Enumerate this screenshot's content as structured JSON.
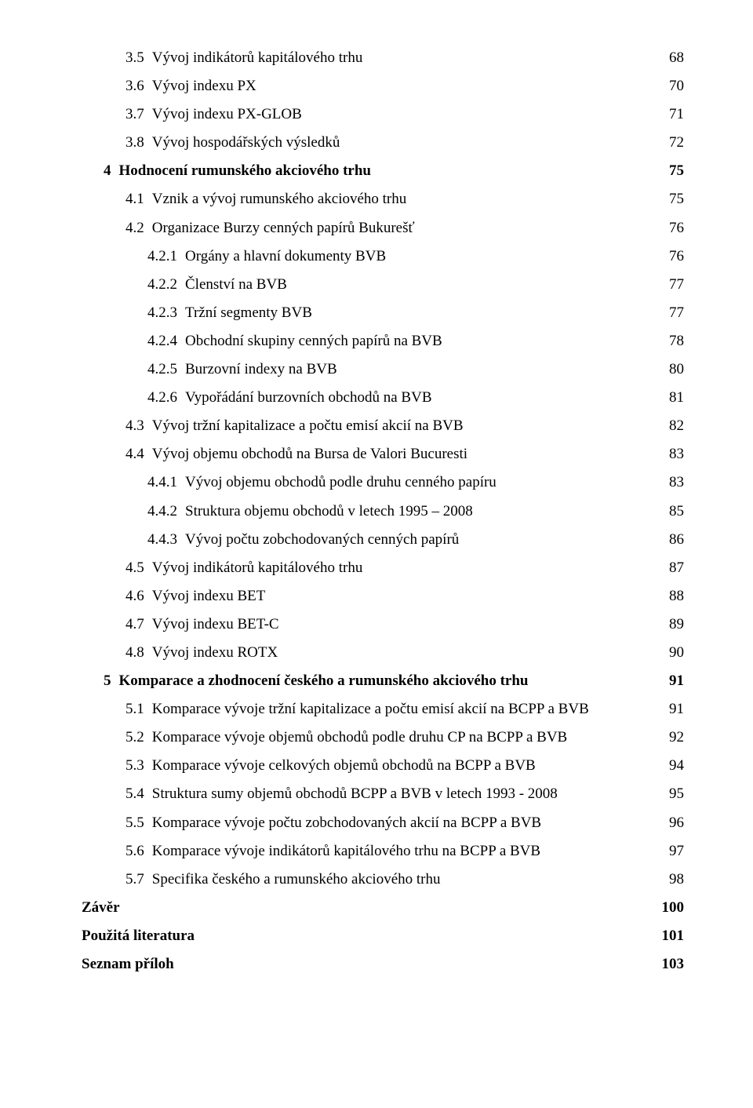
{
  "toc": [
    {
      "indent": 2,
      "num": "3.5",
      "title": "Vývoj indikátorů kapitálového trhu",
      "page": "68",
      "bold": false
    },
    {
      "indent": 2,
      "num": "3.6",
      "title": "Vývoj indexu PX",
      "page": "70",
      "bold": false
    },
    {
      "indent": 2,
      "num": "3.7",
      "title": "Vývoj indexu PX-GLOB",
      "page": "71",
      "bold": false
    },
    {
      "indent": 2,
      "num": "3.8",
      "title": "Vývoj hospodářských výsledků",
      "page": "72",
      "bold": false
    },
    {
      "indent": 1,
      "num": "4",
      "title": "Hodnocení rumunského akciového trhu",
      "page": "75",
      "bold": true
    },
    {
      "indent": 2,
      "num": "4.1",
      "title": "Vznik a vývoj rumunského akciového trhu",
      "page": "75",
      "bold": false
    },
    {
      "indent": 2,
      "num": "4.2",
      "title": "Organizace Burzy cenných papírů Bukurešť",
      "page": "76",
      "bold": false
    },
    {
      "indent": 3,
      "num": "4.2.1",
      "title": "Orgány a hlavní dokumenty BVB",
      "page": "76",
      "bold": false
    },
    {
      "indent": 3,
      "num": "4.2.2",
      "title": "Členství na BVB",
      "page": "77",
      "bold": false
    },
    {
      "indent": 3,
      "num": "4.2.3",
      "title": "Tržní segmenty BVB",
      "page": "77",
      "bold": false
    },
    {
      "indent": 3,
      "num": "4.2.4",
      "title": "Obchodní skupiny cenných papírů na BVB",
      "page": "78",
      "bold": false
    },
    {
      "indent": 3,
      "num": "4.2.5",
      "title": "Burzovní indexy na BVB",
      "page": "80",
      "bold": false
    },
    {
      "indent": 3,
      "num": "4.2.6",
      "title": "Vypořádání burzovních obchodů na BVB",
      "page": "81",
      "bold": false
    },
    {
      "indent": 2,
      "num": "4.3",
      "title": "Vývoj tržní kapitalizace a počtu emisí akcií na BVB",
      "page": "82",
      "bold": false
    },
    {
      "indent": 2,
      "num": "4.4",
      "title": "Vývoj objemu obchodů na Bursa de Valori Bucuresti",
      "page": "83",
      "bold": false
    },
    {
      "indent": 3,
      "num": "4.4.1",
      "title": "Vývoj objemu obchodů podle druhu cenného papíru",
      "page": "83",
      "bold": false
    },
    {
      "indent": 3,
      "num": "4.4.2",
      "title": "Struktura objemu obchodů v letech 1995 – 2008",
      "page": "85",
      "bold": false
    },
    {
      "indent": 3,
      "num": "4.4.3",
      "title": "Vývoj počtu zobchodovaných cenných papírů",
      "page": "86",
      "bold": false
    },
    {
      "indent": 2,
      "num": "4.5",
      "title": "Vývoj indikátorů kapitálového trhu",
      "page": "87",
      "bold": false
    },
    {
      "indent": 2,
      "num": "4.6",
      "title": "Vývoj indexu BET",
      "page": "88",
      "bold": false
    },
    {
      "indent": 2,
      "num": "4.7",
      "title": "Vývoj indexu BET-C",
      "page": "89",
      "bold": false
    },
    {
      "indent": 2,
      "num": "4.8",
      "title": "Vývoj indexu ROTX",
      "page": "90",
      "bold": false
    },
    {
      "indent": 1,
      "num": "5",
      "title": "Komparace a zhodnocení českého a rumunského akciového trhu",
      "page": "91",
      "bold": true
    },
    {
      "indent": 2,
      "num": "5.1",
      "title": "Komparace vývoje tržní kapitalizace a počtu emisí akcií na BCPP a BVB",
      "page": "91",
      "bold": false
    },
    {
      "indent": 2,
      "num": "5.2",
      "title": "Komparace vývoje objemů obchodů podle druhu CP na BCPP a BVB",
      "page": "92",
      "bold": false
    },
    {
      "indent": 2,
      "num": "5.3",
      "title": "Komparace vývoje celkových objemů obchodů na BCPP a BVB",
      "page": "94",
      "bold": false
    },
    {
      "indent": 2,
      "num": "5.4",
      "title": "Struktura sumy objemů obchodů BCPP a BVB v letech 1993 - 2008",
      "page": "95",
      "bold": false
    },
    {
      "indent": 2,
      "num": "5.5",
      "title": "Komparace vývoje počtu zobchodovaných akcií na BCPP a BVB",
      "page": "96",
      "bold": false
    },
    {
      "indent": 2,
      "num": "5.6",
      "title": "Komparace vývoje indikátorů kapitálového trhu na BCPP a BVB",
      "page": "97",
      "bold": false
    },
    {
      "indent": 2,
      "num": "5.7",
      "title": "Specifika českého a rumunského akciového trhu",
      "page": "98",
      "bold": false
    },
    {
      "indent": 0,
      "num": "",
      "title": "Závěr",
      "page": "100",
      "bold": true
    },
    {
      "indent": 0,
      "num": "",
      "title": "Použitá literatura",
      "page": "101",
      "bold": true
    },
    {
      "indent": 0,
      "num": "",
      "title": "Seznam příloh",
      "page": "103",
      "bold": true
    }
  ]
}
